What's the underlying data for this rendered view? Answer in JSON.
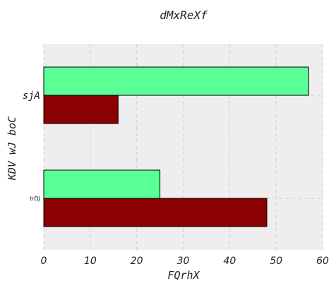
{
  "chart_data": {
    "type": "bar",
    "orientation": "horizontal",
    "title": "dMxReXf",
    "xlabel": "FQrhX",
    "ylabel": "KDV wJ boC",
    "categories": [
      "trDJ",
      "sjA"
    ],
    "series": [
      {
        "values": [
          48,
          16
        ],
        "color": "#8b0000"
      },
      {
        "values": [
          25,
          57
        ],
        "color": "#5aff96"
      }
    ],
    "xlim": [
      0,
      60
    ],
    "xticks": [
      0,
      10,
      20,
      30,
      40,
      50,
      60
    ],
    "grid": true,
    "background": "#eeeeee"
  }
}
